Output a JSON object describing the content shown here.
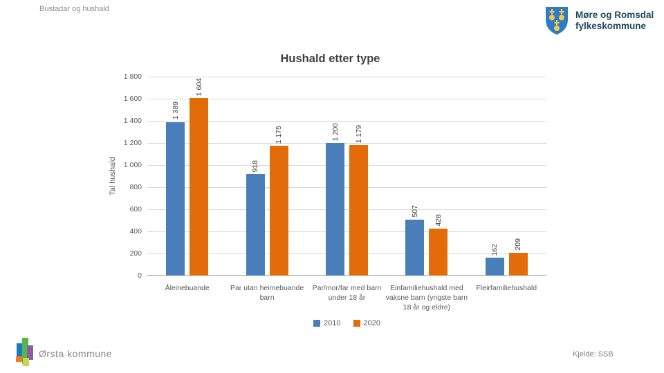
{
  "page": {
    "header_label": "Bustadar og hushald",
    "org": {
      "line1": "Møre og Romsdal",
      "line2": "fylkeskommune"
    },
    "footer": {
      "municipality": "Ørsta kommune",
      "source": "Kjelde: SSB"
    }
  },
  "brand": {
    "shield_blue": "#2e7cc3",
    "shield_gold": "#f2c94c",
    "org_text_color": "#1d4a5e",
    "orsta_blue": "#1e79be",
    "orsta_green": "#56b848",
    "orsta_purple": "#8e5ba6",
    "orsta_orange": "#f47920",
    "orsta_yellowgreen": "#c6d94e"
  },
  "chart_data": {
    "type": "bar",
    "title": "Hushald etter type",
    "xlabel": "",
    "ylabel": "Tal hushald",
    "ylim": [
      0,
      1800
    ],
    "ytick_step": 200,
    "grid": true,
    "legend_position": "bottom",
    "data_labels": "rotated-vertical, space-thousands",
    "categories": [
      "Åleinebuande",
      "Par utan heimebuande barn",
      "Par/mor/far med barn under 18 år",
      "Einfamiliehushald med vaksne barn (yngste barn 18 år og eldre)",
      "Fleirfamiliehushald"
    ],
    "series": [
      {
        "name": "2010",
        "color": "#4a7ebb",
        "values": [
          1389,
          918,
          1200,
          507,
          162
        ]
      },
      {
        "name": "2020",
        "color": "#e36c0a",
        "values": [
          1604,
          1175,
          1179,
          428,
          209
        ]
      }
    ]
  }
}
